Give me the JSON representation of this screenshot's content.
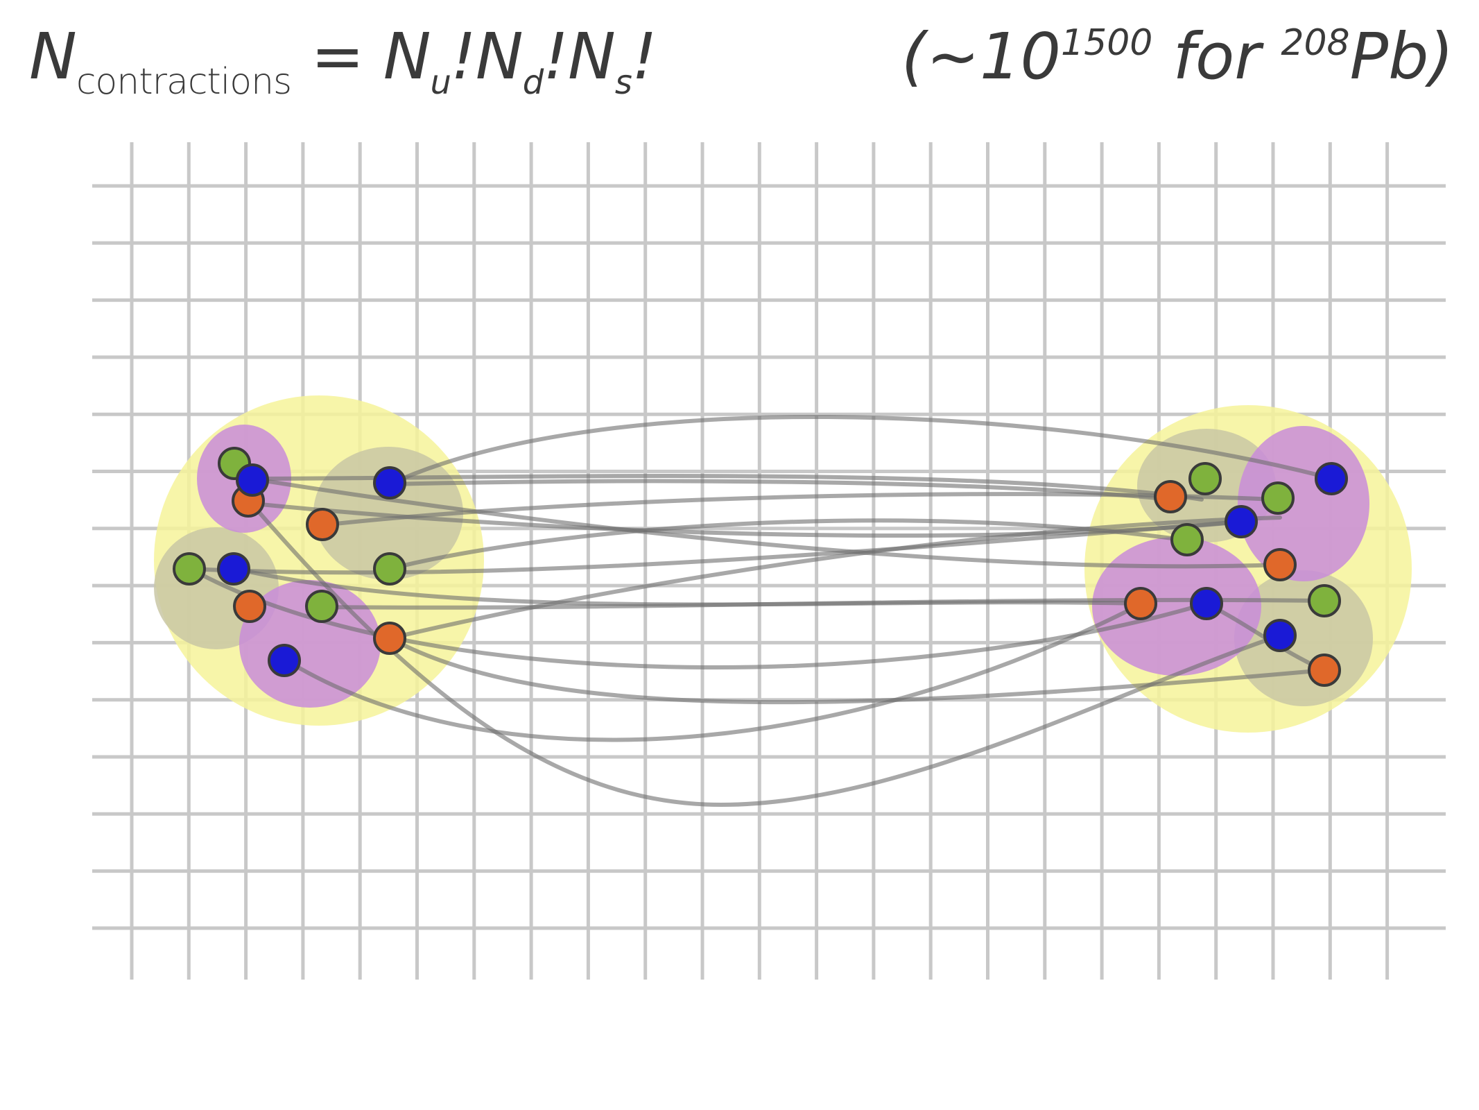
{
  "formula": {
    "lhs_symbol": "N",
    "lhs_subscript": "contractions",
    "equals": "=",
    "term_u": "N",
    "term_u_sub": "u",
    "term_d": "N",
    "term_d_sub": "d",
    "term_s": "N",
    "term_s_sub": "s",
    "bang": "!"
  },
  "note": {
    "open": "(~10",
    "exponent": "1500",
    "middle": " for ",
    "mass_number": "208",
    "element": "Pb)"
  },
  "colors": {
    "grid": "#c8c8c8",
    "nucleus": "#f6f39a",
    "baryon_olive": "#c9c7a4",
    "baryon_purple": "#c98cd9",
    "quark_green": "#7fb23d",
    "quark_blue": "#1a1ad6",
    "quark_orange": "#e0682a",
    "contraction_line": "#6e6e6e"
  }
}
